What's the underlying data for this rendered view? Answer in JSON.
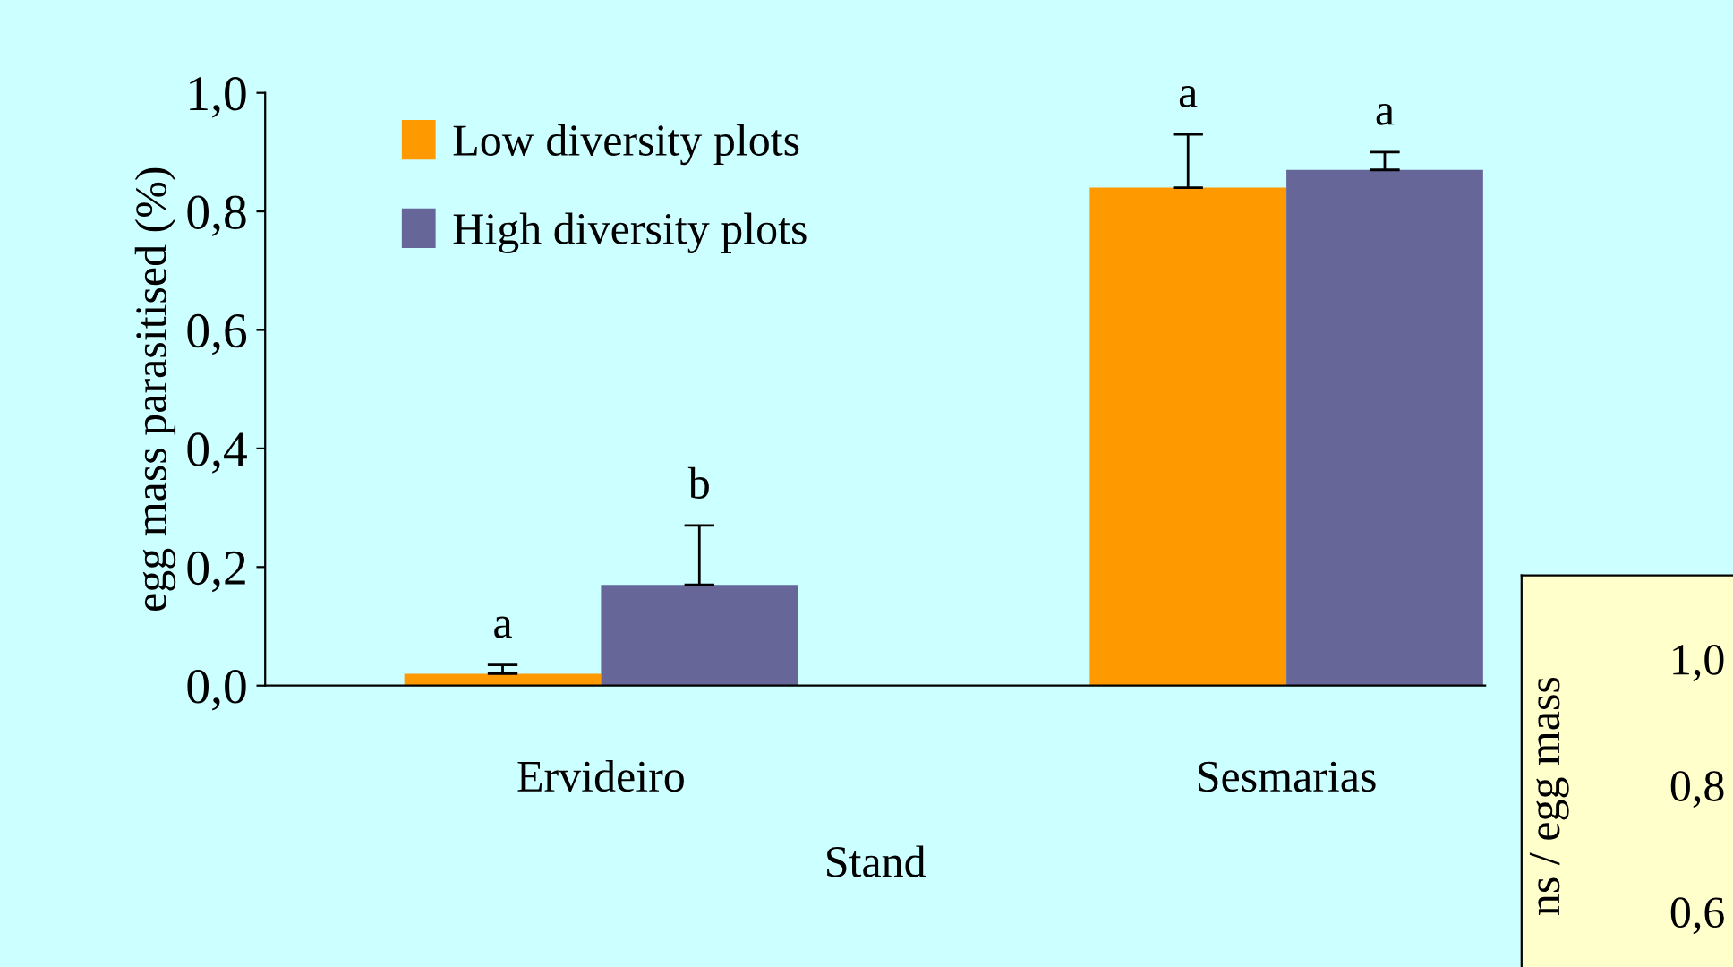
{
  "chart_data": [
    {
      "type": "bar",
      "xlabel": "Stand",
      "ylabel": "egg mass parasitised (%)",
      "categories": [
        "Ervideiro",
        "Sesmarias"
      ],
      "series": [
        {
          "name": "Low diversity plots",
          "color": "#ff9900",
          "values": [
            0.02,
            0.84
          ],
          "errors": [
            0.015,
            0.09
          ]
        },
        {
          "name": "High diversity plots",
          "color": "#666699",
          "values": [
            0.17,
            0.87
          ],
          "errors": [
            0.1,
            0.03
          ]
        }
      ],
      "ylim": [
        0,
        1
      ],
      "yticks": [
        {
          "value": 0,
          "label": "0,0"
        },
        {
          "value": 0.2,
          "label": "0,2"
        },
        {
          "value": 0.4,
          "label": "0,4"
        },
        {
          "value": 0.6,
          "label": "0,6"
        },
        {
          "value": 0.8,
          "label": "0,8"
        },
        {
          "value": 1,
          "label": "1,0"
        }
      ],
      "annotations": [
        "a",
        "b",
        "a",
        "a"
      ],
      "legend": "top left",
      "grid": false
    },
    {
      "type": "other",
      "ylabel": "ns / egg mass",
      "annotations": [
        "1,0",
        "0,8",
        "0,6"
      ]
    }
  ]
}
